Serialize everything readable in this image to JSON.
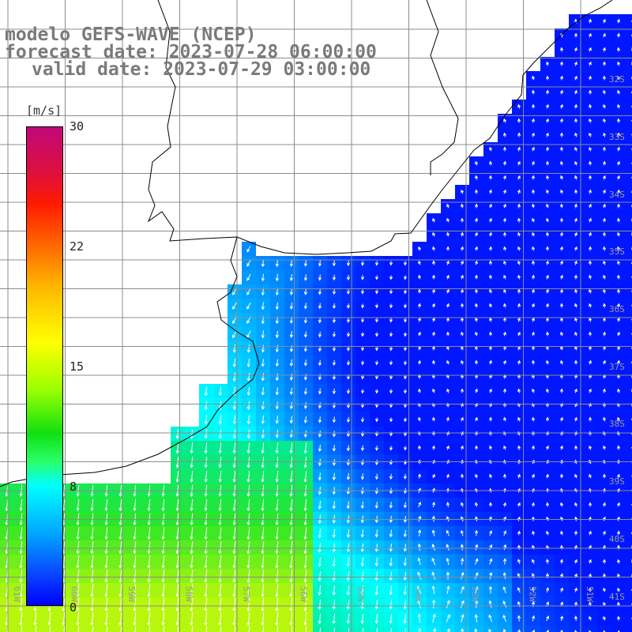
{
  "title": {
    "line1": "modelo GEFS-WAVE (NCEP)",
    "line2": "forecast date: 2023-07-28 06:00:00",
    "line3": "valid date: 2023-07-29 03:00:00"
  },
  "colorbar": {
    "units": "[m/s]",
    "ticks": [
      {
        "label": "30",
        "value": 30
      },
      {
        "label": "22",
        "value": 22
      },
      {
        "label": "15",
        "value": 15
      },
      {
        "label": "8",
        "value": 8
      },
      {
        "label": "0",
        "value": 0
      }
    ],
    "colors": [
      "#0000ff",
      "#00a6ff",
      "#00ffff",
      "#10e010",
      "#ffff00",
      "#ff6a00",
      "#ff1a00",
      "#c0087a"
    ]
  },
  "latitude_labels": [
    "32S",
    "33S",
    "34S",
    "35S",
    "36S",
    "37S",
    "38S",
    "39S",
    "40S",
    "41S"
  ],
  "longitude_labels": [
    "61W",
    "60W",
    "59W",
    "58W",
    "57W",
    "56W",
    "55W",
    "54W",
    "53W",
    "52W",
    "51W"
  ],
  "colors": {
    "land": "#ffffff",
    "coast": "#000000",
    "grid": "#8c8c8c",
    "arrows": "#ffffff",
    "label_gray": "#9a9a9a"
  }
}
